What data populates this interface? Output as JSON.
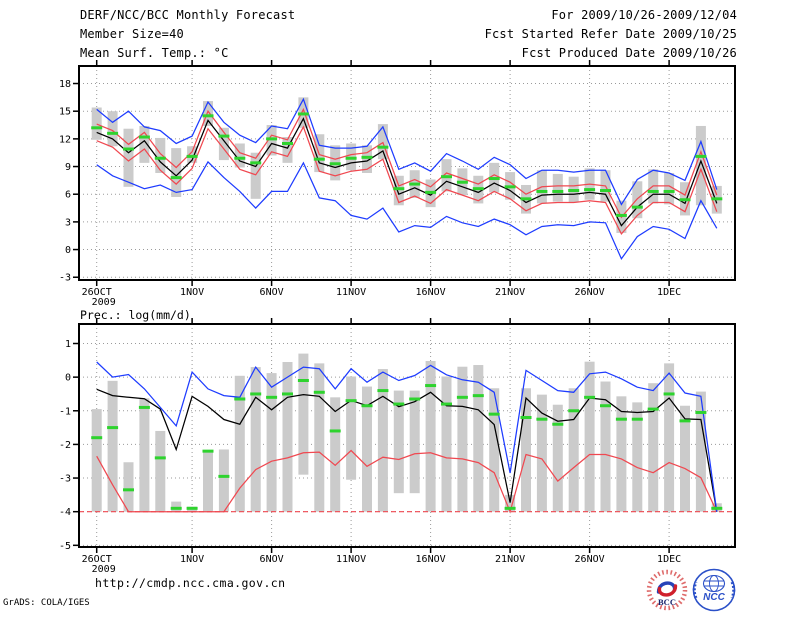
{
  "header": {
    "title": "DERF/NCC/BCC Monthly Forecast",
    "member_size": "Member Size=40",
    "temp_label": "Mean Surf. Temp.: °C",
    "for_range": "For 2009/10/26-2009/12/04",
    "refer_date": "Fcst Started Refer Date 2009/10/25",
    "produced_date": "Fcst Produced Date 2009/10/26"
  },
  "footer": {
    "url": "http://cmdp.ncc.cma.gov.cn",
    "credit": "GrADS: COLA/IGES",
    "logos": {
      "bcc": "BCC",
      "ncc": "NCC"
    }
  },
  "colors": {
    "bar": "#cbcbcb",
    "median": "#2ed32e",
    "max_min": "#1e3cff",
    "band": "#f04850",
    "mean": "#000000",
    "grid": "#9a9a9a"
  },
  "chart_data": [
    {
      "type": "line",
      "name": "mean-surface-temperature",
      "title": "",
      "ylabel": "Mean Surf. Temp.: °C",
      "ylim": [
        -3.3,
        19.9
      ],
      "y_ticks": [
        18,
        15,
        12,
        9,
        6,
        3,
        0,
        -3
      ],
      "x_ticks": [
        {
          "day": 0,
          "label": "26OCT",
          "sublabel": "2009"
        },
        {
          "day": 6,
          "label": "1NOV"
        },
        {
          "day": 11,
          "label": "6NOV"
        },
        {
          "day": 16,
          "label": "11NOV"
        },
        {
          "day": 21,
          "label": "16NOV"
        },
        {
          "day": 26,
          "label": "21NOV"
        },
        {
          "day": 31,
          "label": "26NOV"
        },
        {
          "day": 36,
          "label": "1DEC"
        }
      ],
      "n_days": 40,
      "series": {
        "max": [
          15.2,
          13.8,
          15.0,
          13.3,
          12.9,
          11.5,
          12.3,
          16.0,
          13.8,
          12.4,
          11.6,
          13.4,
          13.1,
          16.3,
          11.3,
          11.0,
          11.0,
          11.2,
          13.3,
          8.7,
          9.4,
          8.5,
          10.4,
          9.6,
          8.7,
          10.0,
          9.2,
          7.7,
          8.6,
          8.6,
          8.4,
          8.6,
          8.6,
          4.9,
          7.6,
          8.6,
          8.3,
          7.5,
          11.7,
          6.5
        ],
        "upper": [
          13.6,
          12.9,
          11.4,
          12.7,
          10.4,
          8.9,
          10.6,
          15.0,
          12.7,
          10.5,
          9.9,
          12.4,
          11.9,
          15.2,
          10.3,
          9.8,
          10.3,
          10.5,
          11.6,
          6.9,
          7.6,
          6.8,
          8.3,
          7.7,
          7.1,
          8.1,
          7.3,
          6.0,
          6.8,
          6.9,
          6.9,
          7.1,
          6.9,
          3.5,
          5.5,
          6.9,
          6.9,
          5.9,
          10.6,
          5.9
        ],
        "mean": [
          12.7,
          12.0,
          10.5,
          11.8,
          9.5,
          8.0,
          9.7,
          14.0,
          11.8,
          9.6,
          9.0,
          11.5,
          11.0,
          14.2,
          9.4,
          8.9,
          9.4,
          9.6,
          10.7,
          6.0,
          6.7,
          5.9,
          7.4,
          6.8,
          6.2,
          7.2,
          6.4,
          5.1,
          5.9,
          6.0,
          6.0,
          6.2,
          6.0,
          2.6,
          4.6,
          6.0,
          6.0,
          5.0,
          9.6,
          5.0
        ],
        "lower": [
          11.8,
          11.1,
          9.6,
          10.9,
          8.6,
          7.1,
          8.8,
          13.1,
          10.9,
          8.7,
          8.1,
          10.6,
          10.1,
          13.3,
          8.5,
          8.0,
          8.5,
          8.7,
          9.8,
          5.1,
          5.8,
          5.0,
          6.5,
          5.9,
          5.3,
          6.3,
          5.5,
          4.2,
          5.0,
          5.1,
          5.1,
          5.3,
          5.1,
          1.7,
          3.7,
          5.1,
          5.1,
          4.1,
          8.7,
          4.1
        ],
        "min": [
          9.2,
          8.0,
          7.3,
          6.6,
          7.0,
          6.2,
          6.5,
          9.5,
          7.8,
          6.3,
          4.5,
          6.3,
          6.3,
          9.4,
          5.6,
          5.3,
          3.7,
          3.3,
          4.5,
          1.9,
          2.6,
          2.4,
          3.6,
          2.9,
          2.5,
          3.3,
          2.7,
          1.6,
          2.5,
          2.7,
          2.6,
          3.0,
          2.9,
          -1.0,
          1.4,
          2.5,
          2.2,
          1.2,
          5.3,
          2.3
        ],
        "median": [
          13.2,
          12.6,
          10.9,
          12.2,
          9.9,
          7.8,
          10.1,
          14.5,
          12.3,
          9.9,
          9.4,
          12.0,
          11.5,
          14.7,
          9.8,
          9.3,
          9.9,
          10.0,
          11.1,
          6.6,
          7.1,
          6.2,
          7.9,
          7.3,
          6.6,
          7.7,
          6.8,
          5.5,
          6.3,
          6.3,
          6.4,
          6.5,
          6.4,
          3.7,
          4.6,
          6.3,
          6.3,
          5.4,
          10.1,
          5.5
        ],
        "bar_hi": [
          15.4,
          15.0,
          13.1,
          13.4,
          12.1,
          11.0,
          11.2,
          16.1,
          13.2,
          11.5,
          10.5,
          13.5,
          12.2,
          16.5,
          12.5,
          11.3,
          11.5,
          11.3,
          13.6,
          8.0,
          8.6,
          7.6,
          9.8,
          8.8,
          8.0,
          9.4,
          8.4,
          7.0,
          8.6,
          8.2,
          7.9,
          8.8,
          8.6,
          5.3,
          7.4,
          8.7,
          8.3,
          7.3,
          13.4,
          6.9
        ],
        "bar_lo": [
          11.9,
          11.2,
          6.8,
          9.4,
          8.3,
          5.7,
          9.4,
          13.4,
          9.7,
          8.9,
          5.5,
          10.2,
          9.4,
          13.2,
          8.4,
          7.5,
          8.6,
          8.3,
          9.8,
          4.8,
          5.6,
          4.6,
          6.3,
          5.9,
          5.0,
          6.2,
          5.4,
          3.9,
          5.0,
          5.2,
          5.1,
          5.4,
          5.2,
          1.8,
          3.4,
          5.0,
          4.9,
          3.7,
          4.8,
          3.9
        ]
      }
    },
    {
      "type": "line+bar",
      "name": "precipitation-log",
      "title": "Prec.: log(mm/d)",
      "ylim": [
        -5.05,
        1.58
      ],
      "floor": -4,
      "y_ticks": [
        1,
        0,
        -1,
        -2,
        -3,
        -4,
        -5
      ],
      "x_ticks": [
        {
          "day": 0,
          "label": "26OCT",
          "sublabel": "2009"
        },
        {
          "day": 6,
          "label": "1NOV"
        },
        {
          "day": 11,
          "label": "6NOV"
        },
        {
          "day": 16,
          "label": "11NOV"
        },
        {
          "day": 21,
          "label": "16NOV"
        },
        {
          "day": 26,
          "label": "21NOV"
        },
        {
          "day": 31,
          "label": "26NOV"
        },
        {
          "day": 36,
          "label": "1DEC"
        }
      ],
      "n_days": 40,
      "series": {
        "max": [
          0.45,
          0.0,
          0.08,
          -0.35,
          -0.9,
          -1.45,
          0.15,
          -0.35,
          -0.55,
          -0.6,
          0.3,
          -0.3,
          0.0,
          0.3,
          0.25,
          -0.35,
          0.25,
          -0.15,
          0.15,
          -0.1,
          0.05,
          0.35,
          0.07,
          -0.08,
          -0.15,
          -0.45,
          -2.85,
          0.2,
          -0.1,
          -0.4,
          -0.45,
          0.1,
          0.15,
          -0.05,
          -0.3,
          -0.4,
          0.12,
          -0.47,
          -0.57,
          -4.0
        ],
        "mean": [
          -0.36,
          -0.55,
          -0.6,
          -0.64,
          -0.95,
          -2.15,
          -0.57,
          -0.87,
          -1.26,
          -1.4,
          -0.6,
          -0.97,
          -0.6,
          -0.52,
          -0.57,
          -1.02,
          -0.69,
          -0.85,
          -0.57,
          -0.88,
          -0.73,
          -0.45,
          -0.85,
          -0.87,
          -0.97,
          -1.41,
          -3.73,
          -0.62,
          -1.07,
          -1.31,
          -1.26,
          -0.62,
          -0.67,
          -1.02,
          -1.05,
          -1.02,
          -0.62,
          -1.24,
          -1.26,
          -4.0
        ],
        "min": [
          -2.35,
          -3.2,
          -4,
          -4,
          -4,
          -4,
          -4,
          -4,
          -4,
          -3.3,
          -2.75,
          -2.5,
          -2.4,
          -2.25,
          -2.23,
          -2.62,
          -2.18,
          -2.65,
          -2.38,
          -2.45,
          -2.28,
          -2.25,
          -2.4,
          -2.43,
          -2.54,
          -2.84,
          -4.0,
          -2.3,
          -2.43,
          -3.09,
          -2.69,
          -2.3,
          -2.3,
          -2.43,
          -2.69,
          -2.84,
          -2.54,
          -2.72,
          -2.99,
          -4.0
        ],
        "median": [
          -1.8,
          -1.5,
          -3.35,
          -0.9,
          -2.4,
          -3.9,
          -3.9,
          -2.2,
          -2.95,
          -0.65,
          -0.5,
          -0.6,
          -0.5,
          -0.1,
          -0.45,
          -1.6,
          -0.7,
          -0.85,
          -0.4,
          -0.8,
          -0.65,
          -0.25,
          -0.8,
          -0.6,
          -0.55,
          -1.1,
          -3.9,
          -1.2,
          -1.25,
          -1.4,
          -1.0,
          -0.6,
          -0.85,
          -1.25,
          -1.25,
          -0.95,
          -0.5,
          -1.3,
          -1.05,
          -3.9
        ],
        "bar_hi": [
          -0.95,
          -0.11,
          -2.53,
          -0.63,
          -1.6,
          -3.7,
          -3.85,
          -2.2,
          -2.15,
          0.04,
          0.3,
          0.12,
          0.45,
          0.7,
          0.41,
          -0.6,
          0.02,
          -0.28,
          0.24,
          -0.4,
          -0.4,
          0.48,
          0.02,
          0.31,
          0.36,
          -0.33,
          -3.5,
          -0.33,
          -0.52,
          -0.82,
          -0.33,
          0.46,
          -0.13,
          -0.57,
          -0.75,
          -0.18,
          0.41,
          -0.85,
          -0.43,
          -3.75
        ],
        "bar_lo": [
          -4,
          -4,
          -4,
          -4,
          -4,
          -4,
          -4,
          -4,
          -4,
          -4,
          -4,
          -4,
          -4,
          -2.9,
          -4,
          -4,
          -3.05,
          -4,
          -4,
          -3.45,
          -3.45,
          -4,
          -4,
          -4,
          -4,
          -4,
          -4,
          -4,
          -4,
          -4,
          -4,
          -4,
          -4,
          -4,
          -4,
          -4,
          -4,
          -4,
          -4,
          -4
        ]
      }
    }
  ]
}
